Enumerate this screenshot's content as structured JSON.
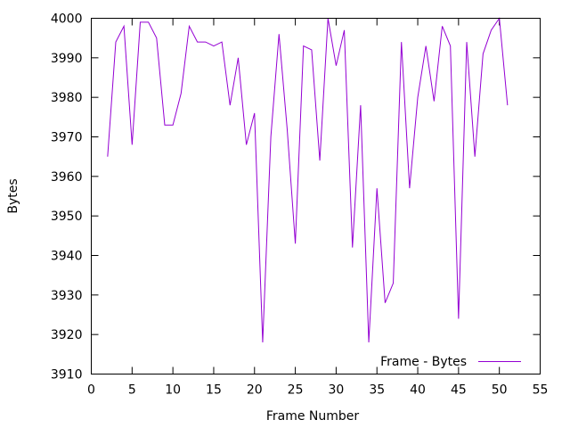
{
  "chart_data": {
    "type": "line",
    "title": "",
    "xlabel": "Frame Number",
    "ylabel": "Bytes",
    "xlim": [
      0,
      55
    ],
    "ylim": [
      3910,
      4000
    ],
    "xticks": [
      0,
      5,
      10,
      15,
      20,
      25,
      30,
      35,
      40,
      45,
      50,
      55
    ],
    "yticks": [
      3910,
      3920,
      3930,
      3940,
      3950,
      3960,
      3970,
      3980,
      3990,
      4000
    ],
    "grid": false,
    "legend_position": "bottom-right",
    "series": [
      {
        "name": "Frame - Bytes",
        "color": "#9400d3",
        "x": [
          2,
          3,
          4,
          5,
          6,
          7,
          8,
          9,
          10,
          11,
          12,
          13,
          14,
          15,
          16,
          17,
          18,
          19,
          20,
          21,
          22,
          23,
          24,
          25,
          26,
          27,
          28,
          29,
          30,
          31,
          32,
          33,
          34,
          35,
          36,
          37,
          38,
          39,
          40,
          41,
          42,
          43,
          44,
          45,
          46,
          47,
          48,
          49,
          50,
          51
        ],
        "y": [
          3965,
          3994,
          3998,
          3968,
          3999,
          3999,
          3995,
          3973,
          3973,
          3981,
          3998,
          3994,
          3994,
          3993,
          3994,
          3978,
          3990,
          3968,
          3976,
          3918,
          3970,
          3996,
          3972,
          3943,
          3993,
          3992,
          3964,
          4000,
          3988,
          3997,
          3942,
          3978,
          3918,
          3957,
          3928,
          3933,
          3994,
          3957,
          3980,
          3993,
          3979,
          3998,
          3993,
          3924,
          3994,
          3965,
          3991,
          3997,
          4000,
          3978
        ]
      }
    ]
  }
}
